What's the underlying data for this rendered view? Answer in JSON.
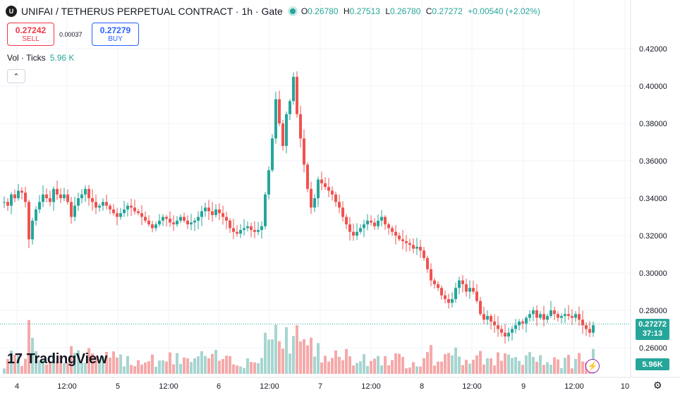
{
  "header": {
    "logo_text": "U",
    "title": "UNIFAI / TETHERUS PERPETUAL CONTRACT · 1h · Gate",
    "ohlc": [
      {
        "key": "O",
        "value": "0.26780"
      },
      {
        "key": "H",
        "value": "0.27513"
      },
      {
        "key": "L",
        "value": "0.26780"
      },
      {
        "key": "C",
        "value": "0.27272"
      }
    ],
    "change": "+0.00540 (+2.02%)"
  },
  "trade": {
    "sell_price": "0.27242",
    "sell_label": "SELL",
    "spread": "0.00037",
    "buy_price": "0.27279",
    "buy_label": "BUY"
  },
  "volume_legend": {
    "label": "Vol · Ticks",
    "value": "5.96 K"
  },
  "collapse_icon": "chevron-up-icon",
  "branding": {
    "text": "TradingView"
  },
  "last_price": {
    "price": "0.27272",
    "countdown": "37:13",
    "color": "#26a69a"
  },
  "volume_tag": "5.96K",
  "colors": {
    "up": "#26a69a",
    "down": "#ef5350",
    "vol_up": "#a7d5d0",
    "vol_down": "#f5a9a9"
  },
  "chart_data": {
    "type": "candlestick",
    "interval": "1h",
    "y_axis_ticks": [
      "0.42000",
      "0.40000",
      "0.38000",
      "0.36000",
      "0.34000",
      "0.32000",
      "0.30000",
      "0.28000",
      "0.26000"
    ],
    "ylim": [
      0.246,
      0.431
    ],
    "x_axis_ticks": [
      "4",
      "12:00",
      "5",
      "12:00",
      "6",
      "12:00",
      "7",
      "12:00",
      "8",
      "12:00",
      "9",
      "12:00",
      "10"
    ],
    "price_path": [
      0.338,
      0.336,
      0.342,
      0.34,
      0.344,
      0.343,
      0.338,
      0.318,
      0.328,
      0.334,
      0.338,
      0.342,
      0.34,
      0.338,
      0.345,
      0.342,
      0.34,
      0.342,
      0.338,
      0.33,
      0.336,
      0.34,
      0.342,
      0.345,
      0.34,
      0.338,
      0.335,
      0.336,
      0.338,
      0.336,
      0.334,
      0.332,
      0.33,
      0.332,
      0.334,
      0.336,
      0.335,
      0.333,
      0.332,
      0.33,
      0.328,
      0.326,
      0.324,
      0.326,
      0.328,
      0.33,
      0.329,
      0.327,
      0.326,
      0.328,
      0.33,
      0.328,
      0.326,
      0.327,
      0.328,
      0.33,
      0.333,
      0.335,
      0.333,
      0.331,
      0.334,
      0.332,
      0.33,
      0.328,
      0.324,
      0.322,
      0.321,
      0.323,
      0.324,
      0.325,
      0.323,
      0.322,
      0.323,
      0.325,
      0.342,
      0.355,
      0.372,
      0.393,
      0.38,
      0.368,
      0.385,
      0.392,
      0.405,
      0.385,
      0.372,
      0.358,
      0.345,
      0.335,
      0.34,
      0.35,
      0.348,
      0.346,
      0.344,
      0.342,
      0.338,
      0.335,
      0.33,
      0.326,
      0.322,
      0.32,
      0.322,
      0.324,
      0.326,
      0.328,
      0.327,
      0.325,
      0.328,
      0.33,
      0.326,
      0.324,
      0.322,
      0.32,
      0.318,
      0.317,
      0.316,
      0.315,
      0.313,
      0.314,
      0.312,
      0.308,
      0.302,
      0.296,
      0.294,
      0.292,
      0.288,
      0.286,
      0.284,
      0.286,
      0.292,
      0.296,
      0.294,
      0.29,
      0.292,
      0.29,
      0.285,
      0.278,
      0.275,
      0.277,
      0.274,
      0.272,
      0.27,
      0.268,
      0.266,
      0.268,
      0.27,
      0.272,
      0.274,
      0.273,
      0.276,
      0.278,
      0.28,
      0.276,
      0.278,
      0.275,
      0.277,
      0.28,
      0.278,
      0.276,
      0.277,
      0.278,
      0.277,
      0.276,
      0.278,
      0.275,
      0.272,
      0.27,
      0.268,
      0.272
    ]
  }
}
